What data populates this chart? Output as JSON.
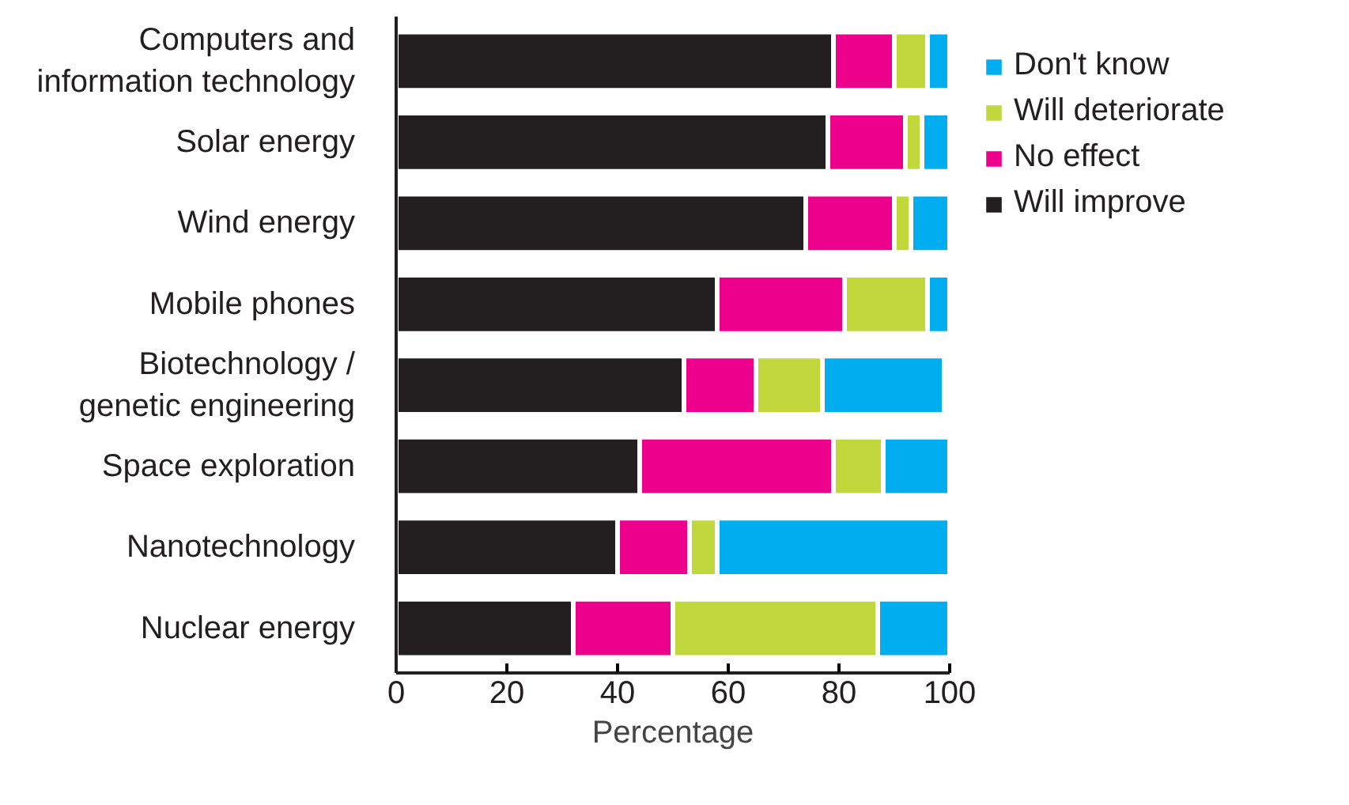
{
  "chart_data": {
    "type": "bar",
    "orientation": "horizontal",
    "stacked": true,
    "xlabel": "Percentage",
    "categories": [
      "Computers and information technology",
      "Solar energy",
      "Wind energy",
      "Mobile phones",
      "Biotechnology / genetic engineering",
      "Space exploration",
      "Nanotechnology",
      "Nuclear energy"
    ],
    "series": [
      {
        "name": "Will improve",
        "color": "#231f20",
        "values": [
          79,
          78,
          74,
          58,
          52,
          44,
          40,
          32
        ]
      },
      {
        "name": "No effect",
        "color": "#ec008c",
        "values": [
          11,
          14,
          16,
          23,
          13,
          35,
          13,
          18
        ]
      },
      {
        "name": "Will deteriorate",
        "color": "#c1d83c",
        "values": [
          6,
          3,
          3,
          15,
          12,
          9,
          5,
          37
        ]
      },
      {
        "name": "Don't know",
        "color": "#00aeef",
        "values": [
          4,
          5,
          7,
          4,
          22,
          12,
          42,
          13
        ]
      }
    ],
    "xlim": [
      0,
      100
    ],
    "xticks": [
      0,
      20,
      40,
      60,
      80,
      100
    ],
    "grid": false,
    "legend": "top right"
  }
}
